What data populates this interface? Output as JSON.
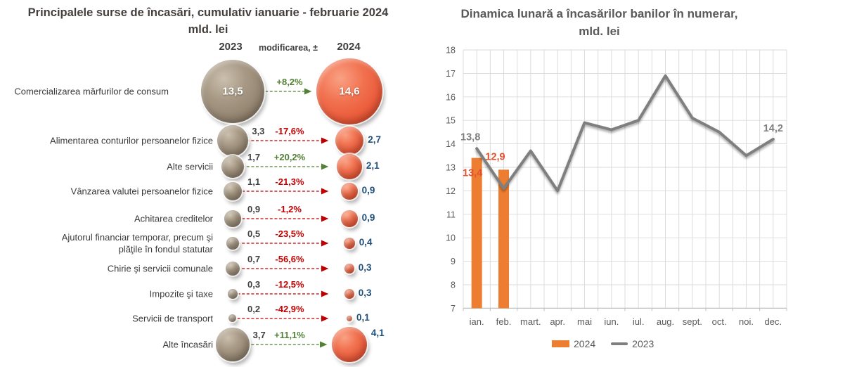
{
  "chart_data": [
    {
      "type": "bubble-comparison",
      "title": "Principalele surse de încasări, cumulativ ianuarie - februarie 2024",
      "subtitle": "mld. lei",
      "columns": {
        "left": "2023",
        "middle": "modificarea, ±",
        "right": "2024"
      },
      "rows": [
        {
          "label": "Comercializarea mărfurilor de consum",
          "value_2023": 13.5,
          "display_2023": "13,5",
          "change": "+8,2%",
          "trend": "up",
          "value_2024": 14.6,
          "display_2024": "14,6"
        },
        {
          "label": "Alimentarea conturilor persoanelor fizice",
          "value_2023": 3.3,
          "display_2023": "3,3",
          "change": "-17,6%",
          "trend": "down",
          "value_2024": 2.7,
          "display_2024": "2,7"
        },
        {
          "label": "Alte servicii",
          "value_2023": 1.7,
          "display_2023": "1,7",
          "change": "+20,2%",
          "trend": "up",
          "value_2024": 2.1,
          "display_2024": "2,1"
        },
        {
          "label": "Vânzarea valutei persoanelor fizice",
          "value_2023": 1.1,
          "display_2023": "1,1",
          "change": "-21,3%",
          "trend": "down",
          "value_2024": 0.9,
          "display_2024": "0,9"
        },
        {
          "label": "Achitarea creditelor",
          "value_2023": 0.9,
          "display_2023": "0,9",
          "change": "-1,2%",
          "trend": "down",
          "value_2024": 0.9,
          "display_2024": "0,9"
        },
        {
          "label": "Ajutorul financiar temporar, precum şi\nplăţile în fondul statutar",
          "value_2023": 0.5,
          "display_2023": "0,5",
          "change": "-23,5%",
          "trend": "down",
          "value_2024": 0.4,
          "display_2024": "0,4"
        },
        {
          "label": "Chirie şi servicii comunale",
          "value_2023": 0.7,
          "display_2023": "0,7",
          "change": "-56,6%",
          "trend": "down",
          "value_2024": 0.3,
          "display_2024": "0,3"
        },
        {
          "label": "Impozite şi taxe",
          "value_2023": 0.3,
          "display_2023": "0,3",
          "change": "-12,5%",
          "trend": "down",
          "value_2024": 0.3,
          "display_2024": "0,3"
        },
        {
          "label": "Servicii de transport",
          "value_2023": 0.2,
          "display_2023": "0,2",
          "change": "-42,9%",
          "trend": "down",
          "value_2024": 0.1,
          "display_2024": "0,1"
        },
        {
          "label": "Alte încasări",
          "value_2023": 3.7,
          "display_2023": "3,7",
          "change": "+11,1%",
          "trend": "up",
          "value_2024": 4.1,
          "display_2024": "4,1"
        }
      ],
      "colors": {
        "bubble_2023": "#9d8e7e",
        "bubble_2024": "#ee6a4a",
        "positive": "#538135",
        "negative": "#c00000",
        "value_2023_text": "#404040",
        "value_2024_text": "#1f4e79"
      }
    },
    {
      "type": "bar+line",
      "title": "Dinamica lunară a încasărilor banilor în numerar,",
      "subtitle": "mld. lei",
      "categories": [
        "ian.",
        "feb.",
        "mart.",
        "apr.",
        "mai",
        "iun.",
        "iul.",
        "aug.",
        "sept.",
        "oct.",
        "noi.",
        "dec."
      ],
      "series": [
        {
          "name": "2024",
          "type": "bar",
          "color": "#ED7D31",
          "label_color": "#e2502c",
          "values": [
            13.4,
            12.9,
            null,
            null,
            null,
            null,
            null,
            null,
            null,
            null,
            null,
            null
          ],
          "labels": [
            "13,4",
            "12,9"
          ]
        },
        {
          "name": "2023",
          "type": "line",
          "color": "#7f7f7f",
          "label_color": "#7f7f7f",
          "values": [
            13.8,
            12.1,
            13.7,
            12.0,
            14.9,
            14.6,
            15.0,
            16.9,
            15.1,
            14.5,
            13.5,
            14.2
          ],
          "first_label": "13,8",
          "last_label": "14,2"
        }
      ],
      "ylim": [
        7,
        18
      ],
      "ytick_step": 1,
      "grid": true,
      "legend_position": "bottom"
    }
  ]
}
